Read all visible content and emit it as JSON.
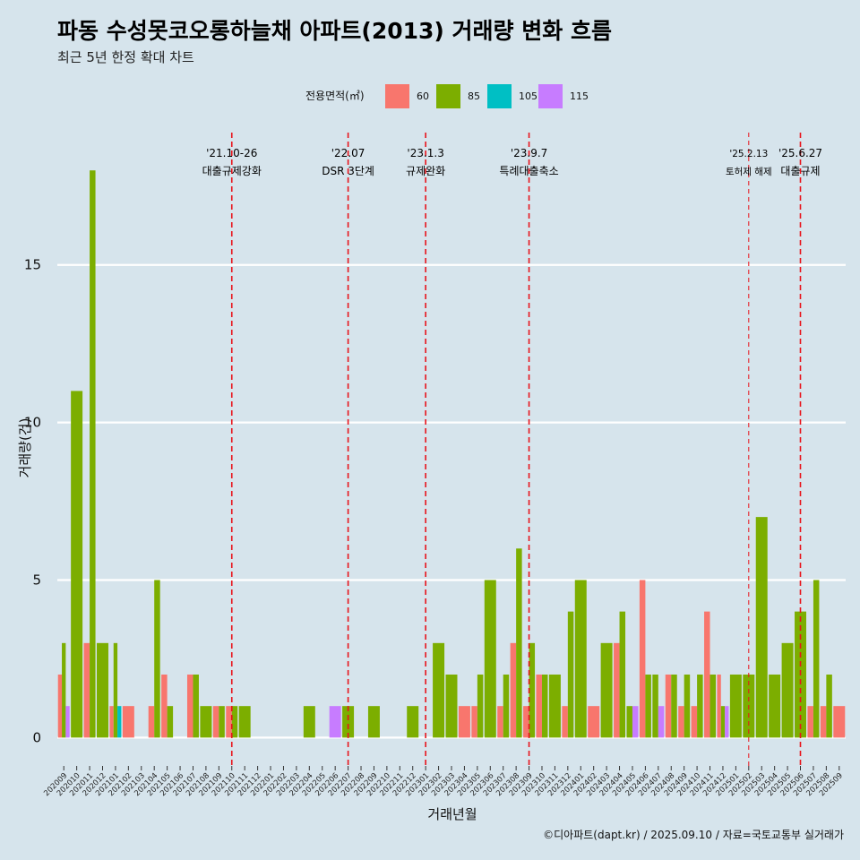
{
  "chart_data": {
    "type": "bar",
    "title": "파동 수성못코오롱하늘채 아파트(2013) 거래량 변화 흐름",
    "subtitle": "최근 5년 한정 확대 차트",
    "xlabel": "거래년월",
    "ylabel": "거래량(건)",
    "caption": "©디아파트(dapt.kr) / 2025.09.10 / 자료=국토교통부 실거래가",
    "legend_title": "전용면적(㎡)",
    "legend_position": "top",
    "ylim": [
      -0.9,
      19.2
    ],
    "yticks": [
      0,
      5,
      10,
      15
    ],
    "grid": "horizontal-major",
    "months": [
      "202009",
      "202010",
      "202011",
      "202012",
      "202101",
      "202102",
      "202103",
      "202104",
      "202105",
      "202106",
      "202107",
      "202108",
      "202109",
      "202110",
      "202111",
      "202112",
      "202201",
      "202202",
      "202203",
      "202204",
      "202205",
      "202206",
      "202207",
      "202208",
      "202209",
      "202210",
      "202211",
      "202212",
      "202301",
      "202302",
      "202303",
      "202304",
      "202305",
      "202306",
      "202307",
      "202308",
      "202309",
      "202310",
      "202311",
      "202312",
      "202401",
      "202402",
      "202403",
      "202404",
      "202405",
      "202406",
      "202407",
      "202408",
      "202409",
      "202410",
      "202411",
      "202412",
      "202501",
      "202502",
      "202503",
      "202504",
      "202505",
      "202506",
      "202507",
      "202508",
      "202509"
    ],
    "series": [
      {
        "name": "60",
        "color": "#f8766d",
        "values": [
          2,
          0,
          3,
          0,
          1,
          1,
          0,
          1,
          2,
          0,
          2,
          0,
          1,
          1,
          0,
          0,
          0,
          0,
          0,
          0,
          0,
          0,
          0,
          0,
          0,
          0,
          0,
          0,
          0,
          0,
          0,
          1,
          1,
          0,
          1,
          3,
          1,
          2,
          0,
          1,
          0,
          1,
          0,
          3,
          0,
          5,
          0,
          2,
          1,
          1,
          4,
          2,
          0,
          0,
          0,
          0,
          0,
          0,
          1,
          1,
          1
        ]
      },
      {
        "name": "85",
        "color": "#7cae00",
        "values": [
          3,
          11,
          18,
          3,
          3,
          0,
          0,
          5,
          1,
          0,
          2,
          1,
          1,
          1,
          1,
          0,
          0,
          0,
          0,
          1,
          0,
          0,
          1,
          0,
          1,
          0,
          0,
          1,
          0,
          3,
          2,
          0,
          2,
          5,
          2,
          6,
          3,
          2,
          2,
          4,
          5,
          0,
          3,
          4,
          1,
          2,
          2,
          2,
          2,
          2,
          2,
          1,
          2,
          2,
          7,
          2,
          3,
          4,
          5,
          2,
          0
        ]
      },
      {
        "name": "105",
        "color": "#00bfc4",
        "values": [
          0,
          0,
          0,
          0,
          1,
          0,
          0,
          0,
          0,
          0,
          0,
          0,
          0,
          0,
          0,
          0,
          0,
          0,
          0,
          0,
          0,
          0,
          0,
          0,
          0,
          0,
          0,
          0,
          0,
          0,
          0,
          0,
          0,
          0,
          0,
          0,
          0,
          0,
          0,
          0,
          0,
          0,
          0,
          0,
          0,
          0,
          0,
          0,
          0,
          0,
          0,
          0,
          0,
          0,
          0,
          0,
          0,
          0,
          0,
          0,
          0
        ]
      },
      {
        "name": "115",
        "color": "#c77cff",
        "values": [
          1,
          0,
          0,
          0,
          0,
          0,
          0,
          0,
          0,
          0,
          0,
          0,
          0,
          0,
          0,
          0,
          0,
          0,
          0,
          0,
          0,
          1,
          0,
          0,
          0,
          0,
          0,
          0,
          0,
          0,
          0,
          0,
          0,
          0,
          0,
          0,
          0,
          0,
          0,
          0,
          0,
          0,
          0,
          0,
          1,
          0,
          1,
          0,
          0,
          0,
          0,
          1,
          0,
          0,
          0,
          0,
          0,
          0,
          0,
          0,
          0
        ]
      }
    ],
    "annotations": [
      {
        "month": "202110",
        "date": "'21.10-26",
        "label": "대출규제강화",
        "size": "normal",
        "line": "bold"
      },
      {
        "month": "202207",
        "date": "'22.07",
        "label": "DSR 3단계",
        "size": "normal",
        "line": "bold"
      },
      {
        "month": "202301",
        "date": "'23.1.3",
        "label": "규제완화",
        "size": "normal",
        "line": "bold"
      },
      {
        "month": "202309",
        "date": "'23.9.7",
        "label": "특례대출축소",
        "size": "normal",
        "line": "bold"
      },
      {
        "month": "202502",
        "date": "'25.2.13",
        "label": "토허제 해제",
        "size": "small",
        "line": "thin"
      },
      {
        "month": "202506",
        "date": "'25.6.27",
        "label": "대출규제",
        "size": "normal",
        "line": "bold"
      }
    ]
  }
}
